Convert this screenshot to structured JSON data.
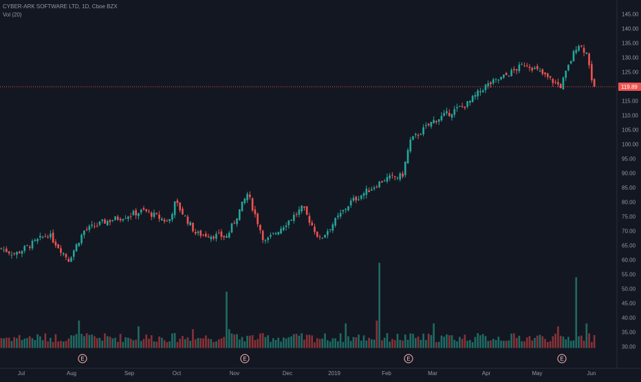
{
  "header": {
    "symbol_line": "CYBER-ARK SOFTWARE LTD, 1D, Cboe BZX",
    "volume_label": "Vol (20)"
  },
  "price_axis": {
    "ticks": [
      "145.00",
      "140.00",
      "135.00",
      "130.00",
      "125.00",
      "120.00",
      "115.00",
      "110.00",
      "105.00",
      "100.00",
      "95.00",
      "90.00",
      "85.00",
      "80.00",
      "75.00",
      "70.00",
      "65.00",
      "60.00",
      "55.00",
      "50.00",
      "45.00",
      "40.00",
      "35.00",
      "30.00"
    ],
    "last_price": "119.89"
  },
  "time_axis": {
    "labels": [
      "Jul",
      "Aug",
      "Sep",
      "Oct",
      "Nov",
      "Dec",
      "2019",
      "Feb",
      "Mar",
      "Apr",
      "May",
      "Jun"
    ]
  },
  "earnings_marker": {
    "label": "E",
    "count": 4
  },
  "colors": {
    "background": "#131722",
    "up": "#26a69a",
    "down": "#ef5350",
    "up_volume": "#1f6b63",
    "down_volume": "#8a3236",
    "axis_text": "#9598a1",
    "last_price_badge": "#ef5350"
  },
  "chart_data": {
    "type": "candlestick",
    "title": "CYBER-ARK SOFTWARE LTD, 1D, Cboe BZX",
    "x_range": [
      "Jul",
      "Jun"
    ],
    "price_range": [
      30,
      145
    ],
    "last_price": 119.89,
    "grid": false,
    "volume_indicator": "Vol (20)",
    "price_path": [
      {
        "approx_date": "late Jun",
        "close": 64
      },
      {
        "approx_date": "early Jul",
        "close": 62
      },
      {
        "approx_date": "mid Jul",
        "close": 66
      },
      {
        "approx_date": "late Jul",
        "close": 69
      },
      {
        "approx_date": "early Aug",
        "close": 60
      },
      {
        "approx_date": "mid Aug",
        "close": 70
      },
      {
        "approx_date": "late Aug",
        "close": 73
      },
      {
        "approx_date": "mid Sep",
        "close": 77
      },
      {
        "approx_date": "late Sep",
        "close": 73
      },
      {
        "approx_date": "early Oct",
        "close": 80
      },
      {
        "approx_date": "mid Oct",
        "close": 69
      },
      {
        "approx_date": "late Oct",
        "close": 68
      },
      {
        "approx_date": "early Nov",
        "close": 83
      },
      {
        "approx_date": "mid Nov",
        "close": 66
      },
      {
        "approx_date": "late Nov",
        "close": 78
      },
      {
        "approx_date": "mid Dec",
        "close": 67
      },
      {
        "approx_date": "early Jan",
        "close": 80
      },
      {
        "approx_date": "late Jan",
        "close": 88
      },
      {
        "approx_date": "early Feb",
        "close": 89
      },
      {
        "approx_date": "mid Feb",
        "close": 101
      },
      {
        "approx_date": "late Feb",
        "close": 108
      },
      {
        "approx_date": "mid Mar",
        "close": 114
      },
      {
        "approx_date": "early Apr",
        "close": 120
      },
      {
        "approx_date": "mid Apr",
        "close": 123
      },
      {
        "approx_date": "late Apr",
        "close": 128
      },
      {
        "approx_date": "mid May",
        "close": 120
      },
      {
        "approx_date": "late May",
        "close": 135
      },
      {
        "approx_date": "end May",
        "close": 131
      },
      {
        "approx_date": "early Jun",
        "close": 119.89
      }
    ]
  }
}
